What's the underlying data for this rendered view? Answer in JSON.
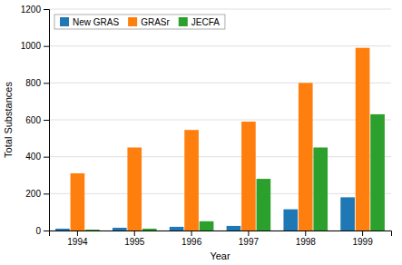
{
  "chart_data": {
    "type": "bar",
    "xlabel": "Year",
    "ylabel": "Total Substances",
    "categories": [
      "1994",
      "1995",
      "1996",
      "1997",
      "1998",
      "1999"
    ],
    "series": [
      {
        "name": "New GRAS",
        "values": [
          10,
          15,
          20,
          25,
          115,
          180
        ]
      },
      {
        "name": "GRASr",
        "values": [
          310,
          450,
          545,
          590,
          800,
          990
        ]
      },
      {
        "name": "JECFA",
        "values": [
          5,
          10,
          50,
          280,
          450,
          630
        ]
      }
    ],
    "ylim": [
      0,
      1200
    ],
    "yticks": [
      0,
      200,
      400,
      600,
      800,
      1000,
      1200
    ],
    "grid": true,
    "legend": "upper-left"
  }
}
